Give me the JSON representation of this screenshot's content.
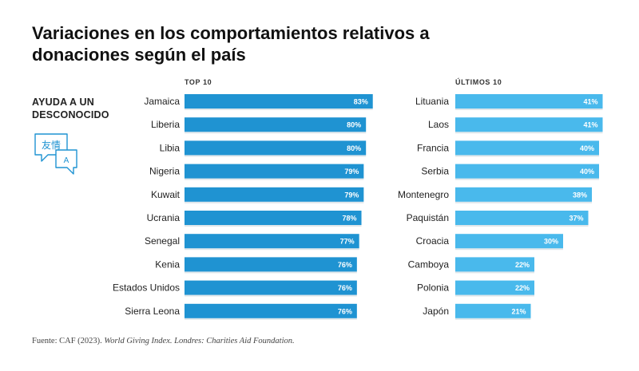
{
  "header": {
    "title_line1": "Variaciones en los comportamientos relativos a",
    "title_line2": "donaciones según el país"
  },
  "section": {
    "label_line1": "AYUDA A UN",
    "label_line2": "DESCONOCIDO",
    "icon_glyph": "友情",
    "icon_letter": "A"
  },
  "colors": {
    "top_bar": "#1f93d2",
    "bottom_bar": "#49b9ec"
  },
  "chart_data": [
    {
      "type": "bar",
      "orientation": "horizontal",
      "title": "TOP 10",
      "categories": [
        "Jamaica",
        "Liberia",
        "Libia",
        "Nigeria",
        "Kuwait",
        "Ucrania",
        "Senegal",
        "Kenia",
        "Estados Unidos",
        "Sierra Leona"
      ],
      "values": [
        83,
        80,
        80,
        79,
        79,
        78,
        77,
        76,
        76,
        76
      ],
      "value_labels": [
        "83%",
        "80%",
        "80%",
        "79%",
        "79%",
        "78%",
        "77%",
        "76%",
        "76%",
        "76%"
      ],
      "xlim": [
        0,
        100
      ],
      "unit": "%"
    },
    {
      "type": "bar",
      "orientation": "horizontal",
      "title": "ÚLTIMOS 10",
      "categories": [
        "Lituania",
        "Laos",
        "Francia",
        "Serbia",
        "Montenegro",
        "Paquistán",
        "Croacia",
        "Camboya",
        "Polonia",
        "Japón"
      ],
      "values": [
        41,
        41,
        40,
        40,
        38,
        37,
        30,
        22,
        22,
        21
      ],
      "value_labels": [
        "41%",
        "41%",
        "40%",
        "40%",
        "38%",
        "37%",
        "30%",
        "22%",
        "22%",
        "21%"
      ],
      "xlim": [
        0,
        100
      ],
      "unit": "%"
    }
  ],
  "source": {
    "prefix": "Fuente: CAF (2023). ",
    "work": "World Giving Index. Londres: Charities Aid Foundation."
  }
}
